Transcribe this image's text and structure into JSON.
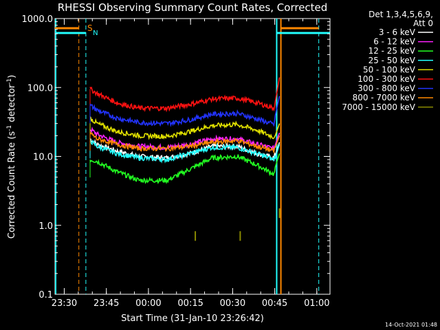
{
  "chart_data": {
    "type": "line",
    "title": "RHESSI Observing Summary Count Rates, Corrected",
    "xlabel": "Start Time (31-Jan-10 23:26:42)",
    "ylabel": "Corrected Count Rate (s-1 detector-1)",
    "ylabel_parts": {
      "main": "Corrected Count Rate (s",
      "sup1": "-1",
      "mid": " detector",
      "sup2": "-1",
      "end": ")"
    },
    "yscale": "log",
    "ylim": [
      0.1,
      1000.0
    ],
    "xlim_minutes": [
      0,
      98
    ],
    "y_ticks": [
      "0.1",
      "1.0",
      "10.0",
      "100.0",
      "1000.0"
    ],
    "x_ticks": [
      {
        "label": "23:30",
        "minute": 3.3
      },
      {
        "label": "23:45",
        "minute": 18.3
      },
      {
        "label": "00:00",
        "minute": 33.3
      },
      {
        "label": "00:15",
        "minute": 48.3
      },
      {
        "label": "00:30",
        "minute": 63.3
      },
      {
        "label": "00:45",
        "minute": 78.3
      },
      {
        "label": "01:00",
        "minute": 93.3
      }
    ],
    "legend_header": [
      "Det 1,3,4,5,6,9,",
      "Att 0"
    ],
    "series": [
      {
        "name": "3 - 6 keV",
        "color": "#ffffff",
        "x": [
          12.5,
          15,
          22,
          30,
          40,
          48,
          56,
          65,
          72,
          78,
          80
        ],
        "values": [
          18,
          15,
          12,
          10,
          9.5,
          11,
          14,
          14,
          11,
          9.5,
          16
        ]
      },
      {
        "name": "6 - 12 keV",
        "color": "#ff22ff",
        "x": [
          12.5,
          15,
          22,
          30,
          40,
          48,
          56,
          65,
          72,
          78,
          80
        ],
        "values": [
          25,
          21,
          16,
          14,
          13.5,
          15,
          18,
          18,
          15,
          13,
          22
        ]
      },
      {
        "name": "12 - 25 keV",
        "color": "#22ff22",
        "x": [
          12.5,
          15,
          22,
          30,
          40,
          48,
          56,
          65,
          72,
          78,
          80
        ],
        "values": [
          9,
          8.5,
          6,
          4.5,
          4.5,
          6.5,
          9.5,
          10,
          7.5,
          5.5,
          11
        ]
      },
      {
        "name": "25 - 50 keV",
        "color": "#22ffff",
        "x": [
          12.5,
          15,
          22,
          30,
          40,
          48,
          56,
          65,
          72,
          78,
          80
        ],
        "values": [
          17,
          14,
          11,
          9.5,
          9,
          11,
          13.5,
          13.5,
          11,
          9,
          15
        ]
      },
      {
        "name": "50 - 100 keV",
        "color": "#e0e000",
        "x": [
          12.5,
          15,
          22,
          30,
          40,
          48,
          56,
          65,
          72,
          78,
          80
        ],
        "values": [
          36,
          30,
          23,
          20,
          19.5,
          23,
          28,
          29,
          24,
          19,
          30
        ]
      },
      {
        "name": "100 - 300 keV",
        "color": "#ff1111",
        "x": [
          12.5,
          15,
          22,
          30,
          40,
          48,
          56,
          65,
          72,
          78,
          80
        ],
        "values": [
          95,
          82,
          60,
          50,
          50,
          57,
          68,
          70,
          60,
          50,
          140
        ]
      },
      {
        "name": "300 - 800 keV",
        "color": "#2233ff",
        "x": [
          12.5,
          15,
          22,
          30,
          40,
          48,
          56,
          65,
          72,
          78,
          80
        ],
        "values": [
          55,
          47,
          36,
          31,
          30,
          34,
          41,
          42,
          35,
          29,
          75
        ]
      },
      {
        "name": "800 - 7000 keV",
        "color": "#ff8800",
        "x": [
          12.5,
          15,
          22,
          30,
          40,
          48,
          56,
          65,
          72,
          78,
          80
        ],
        "values": [
          22,
          18,
          15,
          13,
          13,
          14,
          16,
          17,
          14,
          12,
          20
        ]
      },
      {
        "name": "7000 - 15000 keV",
        "color": "#8a8a00",
        "x": [
          50,
          66,
          80
        ],
        "values": [
          0.7,
          0.7,
          1.5
        ]
      }
    ],
    "flags": [
      {
        "label": "S",
        "color": "#ff8800"
      },
      {
        "label": "N",
        "color": "#22ffff"
      }
    ]
  },
  "footer": {
    "timestamp": "14-Oct-2021 01:48"
  }
}
